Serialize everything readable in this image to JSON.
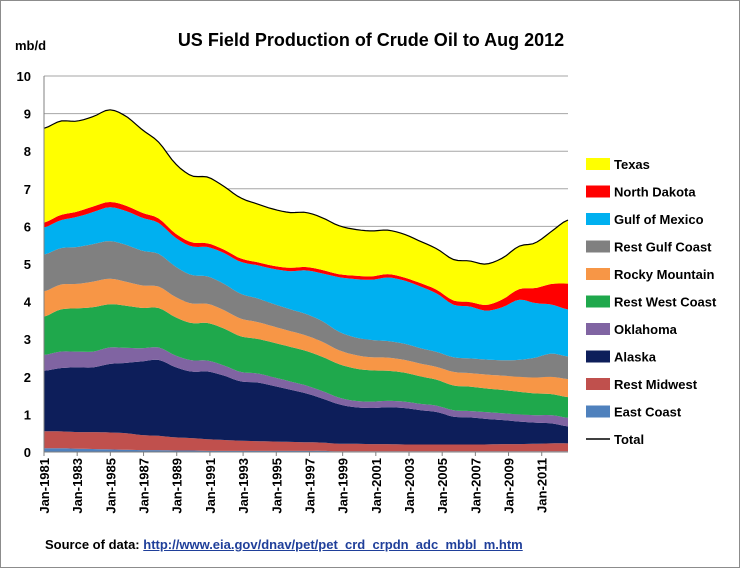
{
  "chart_data": {
    "type": "area",
    "title": "US Field Production of Crude Oil to Aug 2012",
    "ylabel": "mb/d",
    "ylim": [
      0,
      10
    ],
    "yticks": [
      "0",
      "1",
      "2",
      "3",
      "4",
      "5",
      "6",
      "7",
      "8",
      "9",
      "10"
    ],
    "x": [
      "Jan-1981",
      "Jan-1982",
      "Jan-1983",
      "Jan-1984",
      "Jan-1985",
      "Jan-1986",
      "Jan-1987",
      "Jan-1988",
      "Jan-1989",
      "Jan-1990",
      "Jan-1991",
      "Jan-1992",
      "Jan-1993",
      "Jan-1994",
      "Jan-1995",
      "Jan-1996",
      "Jan-1997",
      "Jan-1998",
      "Jan-1999",
      "Jan-2000",
      "Jan-2001",
      "Jan-2002",
      "Jan-2003",
      "Jan-2004",
      "Jan-2005",
      "Jan-2006",
      "Jan-2007",
      "Jan-2008",
      "Jan-2009",
      "Jan-2010",
      "Jan-2011",
      "Jan-2012",
      "Aug-2012"
    ],
    "xticks": [
      "Jan-1981",
      "Jan-1983",
      "Jan-1985",
      "Jan-1987",
      "Jan-1989",
      "Jan-1991",
      "Jan-1993",
      "Jan-1995",
      "Jan-1997",
      "Jan-1999",
      "Jan-2001",
      "Jan-2003",
      "Jan-2005",
      "Jan-2007",
      "Jan-2009",
      "Jan-2011"
    ],
    "legend_position": "right",
    "series": [
      {
        "name": "East Coast",
        "color": "#4f81bd",
        "values": [
          0.1,
          0.1,
          0.09,
          0.08,
          0.07,
          0.06,
          0.05,
          0.05,
          0.04,
          0.04,
          0.03,
          0.03,
          0.03,
          0.03,
          0.03,
          0.03,
          0.03,
          0.03,
          0.02,
          0.02,
          0.02,
          0.02,
          0.02,
          0.02,
          0.02,
          0.02,
          0.02,
          0.02,
          0.02,
          0.02,
          0.02,
          0.02,
          0.02
        ]
      },
      {
        "name": "Rest Midwest",
        "color": "#c0504d",
        "values": [
          0.45,
          0.45,
          0.44,
          0.45,
          0.45,
          0.44,
          0.4,
          0.38,
          0.35,
          0.33,
          0.31,
          0.29,
          0.27,
          0.26,
          0.25,
          0.24,
          0.23,
          0.22,
          0.2,
          0.2,
          0.19,
          0.19,
          0.18,
          0.18,
          0.18,
          0.18,
          0.18,
          0.18,
          0.19,
          0.19,
          0.2,
          0.21,
          0.21
        ]
      },
      {
        "name": "Alaska",
        "color": "#0d1e5a",
        "values": [
          1.61,
          1.68,
          1.72,
          1.72,
          1.82,
          1.87,
          1.96,
          2.02,
          1.87,
          1.77,
          1.8,
          1.71,
          1.58,
          1.56,
          1.48,
          1.39,
          1.3,
          1.17,
          1.05,
          0.97,
          0.96,
          0.98,
          0.97,
          0.91,
          0.86,
          0.74,
          0.72,
          0.68,
          0.64,
          0.6,
          0.56,
          0.53,
          0.45
        ]
      },
      {
        "name": "Oklahoma",
        "color": "#8064a2",
        "values": [
          0.42,
          0.44,
          0.42,
          0.42,
          0.44,
          0.4,
          0.35,
          0.33,
          0.31,
          0.3,
          0.29,
          0.27,
          0.25,
          0.24,
          0.23,
          0.22,
          0.21,
          0.2,
          0.18,
          0.17,
          0.17,
          0.17,
          0.17,
          0.17,
          0.17,
          0.17,
          0.17,
          0.18,
          0.18,
          0.19,
          0.2,
          0.22,
          0.23
        ]
      },
      {
        "name": "Rest West Coast",
        "color": "#1fa84c",
        "values": [
          1.02,
          1.12,
          1.15,
          1.18,
          1.15,
          1.12,
          1.07,
          1.05,
          1.02,
          0.99,
          1.0,
          0.98,
          0.95,
          0.92,
          0.92,
          0.92,
          0.92,
          0.91,
          0.89,
          0.86,
          0.83,
          0.8,
          0.77,
          0.73,
          0.69,
          0.66,
          0.65,
          0.63,
          0.62,
          0.6,
          0.58,
          0.56,
          0.55
        ]
      },
      {
        "name": "Rocky Mountain",
        "color": "#f79646",
        "values": [
          0.67,
          0.66,
          0.65,
          0.68,
          0.68,
          0.64,
          0.6,
          0.57,
          0.54,
          0.52,
          0.51,
          0.49,
          0.47,
          0.45,
          0.43,
          0.42,
          0.41,
          0.4,
          0.37,
          0.36,
          0.35,
          0.35,
          0.34,
          0.34,
          0.34,
          0.36,
          0.36,
          0.37,
          0.38,
          0.4,
          0.42,
          0.46,
          0.48
        ]
      },
      {
        "name": "Rest Gulf Coast",
        "color": "#808080",
        "values": [
          0.98,
          0.97,
          0.98,
          1.0,
          1.0,
          0.98,
          0.92,
          0.87,
          0.81,
          0.76,
          0.73,
          0.7,
          0.66,
          0.63,
          0.6,
          0.58,
          0.57,
          0.55,
          0.49,
          0.47,
          0.46,
          0.44,
          0.43,
          0.41,
          0.4,
          0.39,
          0.39,
          0.4,
          0.41,
          0.45,
          0.53,
          0.62,
          0.6
        ]
      },
      {
        "name": "Gulf of Mexico",
        "color": "#00b0f0",
        "values": [
          0.72,
          0.74,
          0.8,
          0.85,
          0.9,
          0.9,
          0.88,
          0.82,
          0.77,
          0.76,
          0.78,
          0.82,
          0.85,
          0.88,
          0.93,
          1.01,
          1.16,
          1.27,
          1.45,
          1.55,
          1.6,
          1.69,
          1.68,
          1.64,
          1.55,
          1.4,
          1.38,
          1.3,
          1.41,
          1.6,
          1.45,
          1.3,
          1.25
        ]
      },
      {
        "name": "North Dakota",
        "color": "#ff0000",
        "values": [
          0.13,
          0.14,
          0.14,
          0.15,
          0.14,
          0.14,
          0.13,
          0.12,
          0.11,
          0.11,
          0.1,
          0.09,
          0.09,
          0.08,
          0.08,
          0.09,
          0.09,
          0.09,
          0.08,
          0.09,
          0.09,
          0.09,
          0.08,
          0.09,
          0.1,
          0.11,
          0.12,
          0.15,
          0.21,
          0.28,
          0.4,
          0.55,
          0.69
        ]
      },
      {
        "name": "Texas",
        "color": "#ffff00",
        "values": [
          2.51,
          2.5,
          2.41,
          2.39,
          2.45,
          2.38,
          2.21,
          2.03,
          1.86,
          1.77,
          1.76,
          1.68,
          1.61,
          1.55,
          1.51,
          1.47,
          1.45,
          1.39,
          1.29,
          1.23,
          1.21,
          1.17,
          1.15,
          1.11,
          1.09,
          1.09,
          1.09,
          1.09,
          1.1,
          1.14,
          1.2,
          1.4,
          1.69
        ]
      }
    ],
    "total": {
      "name": "Total",
      "color": "#000000"
    }
  },
  "source": {
    "label": "Source of data:",
    "link": "http://www.eia.gov/dnav/pet/pet_crd_crpdn_adc_mbbl_m.htm"
  }
}
